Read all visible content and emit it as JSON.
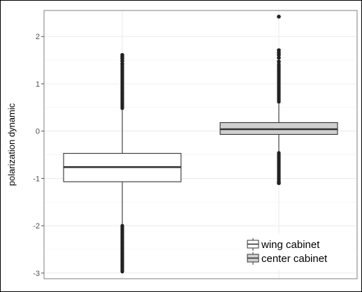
{
  "chart_data": {
    "type": "box",
    "title": "",
    "xlabel": "",
    "ylabel": "polarization dynamic",
    "ylim": [
      -3.12,
      2.55
    ],
    "yticks": [
      -3,
      -2,
      -1,
      0,
      1,
      2
    ],
    "ytick_labels": [
      "-3",
      "-2",
      "-1",
      "0",
      "1",
      "2"
    ],
    "grid": true,
    "legend_position": "bottom-right",
    "series": [
      {
        "name": "wing cabinet",
        "fill": "#ffffff",
        "q1": -1.07,
        "median": -0.76,
        "q3": -0.47,
        "whisker_low": -1.97,
        "whisker_high": 0.44,
        "outliers_low_range": [
          -2.98,
          -2.0
        ],
        "outliers_high_range": [
          0.46,
          1.38
        ],
        "outliers": [
          1.42,
          1.48,
          1.53,
          1.57,
          1.61
        ]
      },
      {
        "name": "center cabinet",
        "fill": "#d0d0d0",
        "q1": -0.07,
        "median": 0.04,
        "q3": 0.18,
        "whisker_low": -0.43,
        "whisker_high": 0.57,
        "outliers_low_range": [
          -1.03,
          -0.46
        ],
        "outliers_high_range": [
          0.6,
          1.42
        ],
        "outliers": [
          -1.07,
          -1.1,
          1.47,
          1.55,
          1.61,
          1.66,
          1.71,
          2.42
        ]
      }
    ]
  }
}
